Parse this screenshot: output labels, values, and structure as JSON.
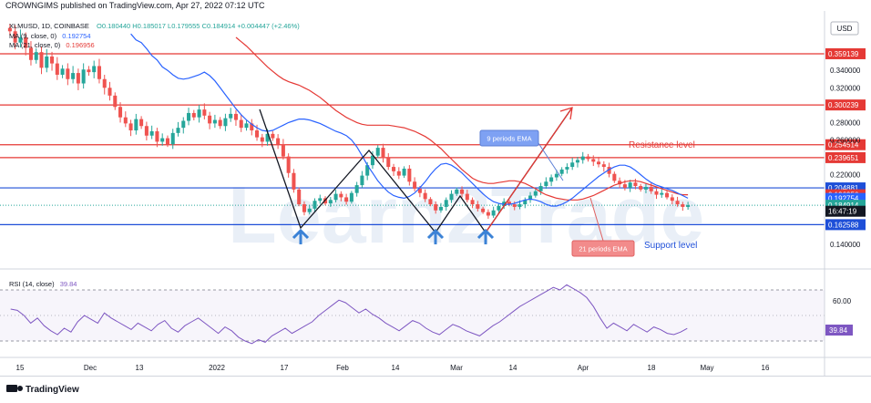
{
  "header": {
    "publisher_line": "CROWNGIMS published on TradingView.com, Apr 27, 2022 07:12 UTC"
  },
  "legend": {
    "symbol_line": "XLMUSD, 1D, COINBASE",
    "ohlc": "O0.180440  H0.185017  L0.179555  C0.184914  +0.004447 (+2.46%)",
    "ma9": "MA (9, close, 0)",
    "ma9_value": "0.192754",
    "ma21": "MA (21, close, 0)",
    "ma21_value": "0.196956"
  },
  "currency": "USD",
  "annotations": {
    "ema9_label": "9 periods EMA",
    "ema21_label": "21 periods EMA",
    "resistance_label": "Resistance level",
    "support_label": "Support level"
  },
  "rsi": {
    "label": "RSI (14, close)",
    "value": "39.84",
    "level_60": "60.00"
  },
  "brand": {
    "name": "TradingView",
    "watermark": "Learn2Trade"
  },
  "colors": {
    "up": "#26a69a",
    "down": "#ef5350",
    "resistance": "#e53935",
    "support": "#1e4fd8",
    "ema9": "#2962ff",
    "ema21": "#e53935",
    "rsi": "#7e57c2",
    "label_blue_bg": "#7ea1f3",
    "label_red_bg": "#f28b8b",
    "countdown_bg": "#131722"
  },
  "chart_data": {
    "type": "candlestick",
    "timeframe": "1D",
    "ylim": [
      0.12,
      0.4
    ],
    "x_ticks": [
      {
        "label": "15",
        "date": "2021-11-15"
      },
      {
        "label": "Dec",
        "date": "2021-12-01"
      },
      {
        "label": "13",
        "date": "2021-12-13"
      },
      {
        "label": "2022",
        "date": "2022-01-01"
      },
      {
        "label": "17",
        "date": "2022-01-17"
      },
      {
        "label": "Feb",
        "date": "2022-02-01"
      },
      {
        "label": "14",
        "date": "2022-02-14"
      },
      {
        "label": "Mar",
        "date": "2022-03-01"
      },
      {
        "label": "14",
        "date": "2022-03-14"
      },
      {
        "label": "Apr",
        "date": "2022-04-01"
      },
      {
        "label": "18",
        "date": "2022-04-18"
      },
      {
        "label": "May",
        "date": "2022-05-01"
      },
      {
        "label": "16",
        "date": "2022-05-16"
      }
    ],
    "y_ticks": [
      "0.340000",
      "0.320000",
      "0.280000",
      "0.260000",
      "0.220000",
      "0.140000"
    ],
    "horizontal_levels": [
      {
        "value": 0.359139,
        "label": "0.359139",
        "kind": "resistance"
      },
      {
        "value": 0.300239,
        "label": "0.300239",
        "kind": "resistance"
      },
      {
        "value": 0.254514,
        "label": "0.254514",
        "kind": "resistance"
      },
      {
        "value": 0.239651,
        "label": "0.239651",
        "kind": "resistance"
      },
      {
        "value": 0.204881,
        "label": "0.204881",
        "kind": "support"
      },
      {
        "value": 0.162588,
        "label": "0.162588",
        "kind": "support"
      }
    ],
    "price_tags": [
      {
        "value": 0.196956,
        "label": "0.196956",
        "kind": "ema21"
      },
      {
        "value": 0.192754,
        "label": "0.192754",
        "kind": "ema9"
      },
      {
        "value": 0.184914,
        "label": "0.184914",
        "kind": "last"
      },
      {
        "value": 0.178,
        "label": "16:47:19",
        "kind": "countdown"
      }
    ],
    "closes": [
      0.385,
      0.372,
      0.378,
      0.366,
      0.352,
      0.361,
      0.343,
      0.356,
      0.348,
      0.335,
      0.342,
      0.33,
      0.337,
      0.325,
      0.341,
      0.338,
      0.345,
      0.33,
      0.32,
      0.311,
      0.298,
      0.286,
      0.279,
      0.271,
      0.284,
      0.276,
      0.265,
      0.27,
      0.258,
      0.262,
      0.255,
      0.268,
      0.274,
      0.282,
      0.291,
      0.286,
      0.295,
      0.288,
      0.279,
      0.283,
      0.276,
      0.285,
      0.29,
      0.283,
      0.274,
      0.279,
      0.271,
      0.263,
      0.258,
      0.267,
      0.262,
      0.255,
      0.241,
      0.222,
      0.203,
      0.186,
      0.177,
      0.181,
      0.19,
      0.193,
      0.187,
      0.191,
      0.198,
      0.194,
      0.189,
      0.199,
      0.208,
      0.219,
      0.231,
      0.242,
      0.251,
      0.239,
      0.229,
      0.224,
      0.219,
      0.227,
      0.212,
      0.204,
      0.199,
      0.192,
      0.186,
      0.179,
      0.183,
      0.191,
      0.198,
      0.203,
      0.198,
      0.191,
      0.186,
      0.181,
      0.177,
      0.173,
      0.179,
      0.184,
      0.189,
      0.186,
      0.183,
      0.186,
      0.191,
      0.196,
      0.201,
      0.207,
      0.212,
      0.217,
      0.221,
      0.226,
      0.229,
      0.234,
      0.237,
      0.241,
      0.238,
      0.235,
      0.232,
      0.229,
      0.221,
      0.213,
      0.209,
      0.205,
      0.211,
      0.207,
      0.203,
      0.206,
      0.201,
      0.197,
      0.199,
      0.194,
      0.19,
      0.186,
      0.183,
      0.185
    ],
    "ema9": [
      0.382,
      0.375,
      0.372,
      0.365,
      0.357,
      0.352,
      0.344,
      0.34,
      0.335,
      0.331,
      0.33,
      0.331,
      0.333,
      0.335,
      0.338,
      0.334,
      0.328,
      0.32,
      0.312,
      0.304,
      0.296,
      0.289,
      0.283,
      0.278,
      0.274,
      0.271,
      0.27,
      0.271,
      0.274,
      0.277,
      0.28,
      0.282,
      0.284,
      0.284,
      0.283,
      0.281,
      0.279,
      0.276,
      0.273,
      0.27,
      0.268,
      0.265,
      0.26,
      0.252,
      0.242,
      0.231,
      0.222,
      0.213,
      0.206,
      0.2,
      0.196,
      0.194,
      0.193,
      0.195,
      0.199,
      0.205,
      0.212,
      0.22,
      0.227,
      0.232,
      0.233,
      0.231,
      0.227,
      0.222,
      0.216,
      0.21,
      0.204,
      0.198,
      0.193,
      0.189,
      0.187,
      0.186,
      0.186,
      0.187,
      0.189,
      0.191,
      0.192,
      0.191,
      0.189,
      0.186,
      0.184,
      0.184,
      0.186,
      0.189,
      0.193,
      0.198,
      0.203,
      0.208,
      0.213,
      0.218,
      0.222,
      0.226,
      0.229,
      0.231,
      0.231,
      0.229,
      0.225,
      0.22,
      0.215,
      0.211,
      0.208,
      0.206,
      0.204,
      0.202,
      0.199,
      0.196,
      0.193
    ],
    "ema21": [
      0.378,
      0.373,
      0.368,
      0.362,
      0.356,
      0.35,
      0.344,
      0.339,
      0.334,
      0.33,
      0.327,
      0.325,
      0.323,
      0.32,
      0.317,
      0.313,
      0.309,
      0.304,
      0.299,
      0.294,
      0.29,
      0.286,
      0.283,
      0.28,
      0.278,
      0.277,
      0.277,
      0.277,
      0.277,
      0.277,
      0.276,
      0.275,
      0.274,
      0.272,
      0.27,
      0.267,
      0.264,
      0.26,
      0.255,
      0.25,
      0.244,
      0.238,
      0.232,
      0.226,
      0.221,
      0.216,
      0.213,
      0.211,
      0.21,
      0.21,
      0.211,
      0.212,
      0.213,
      0.213,
      0.212,
      0.21,
      0.207,
      0.204,
      0.2,
      0.197,
      0.195,
      0.193,
      0.192,
      0.191,
      0.191,
      0.191,
      0.192,
      0.194,
      0.196,
      0.199,
      0.202,
      0.205,
      0.208,
      0.21,
      0.212,
      0.213,
      0.213,
      0.212,
      0.21,
      0.208,
      0.206,
      0.204,
      0.202,
      0.2,
      0.198,
      0.197,
      0.197
    ],
    "rsi": [
      55,
      54,
      50,
      44,
      48,
      42,
      38,
      35,
      40,
      37,
      45,
      50,
      47,
      44,
      52,
      48,
      45,
      42,
      39,
      44,
      41,
      38,
      43,
      46,
      40,
      37,
      42,
      45,
      48,
      44,
      40,
      36,
      41,
      38,
      33,
      30,
      28,
      31,
      29,
      34,
      37,
      40,
      36,
      39,
      42,
      45,
      50,
      54,
      58,
      62,
      60,
      56,
      52,
      55,
      51,
      48,
      44,
      41,
      38,
      42,
      46,
      44,
      40,
      37,
      35,
      39,
      43,
      41,
      38,
      36,
      34,
      38,
      42,
      45,
      49,
      53,
      57,
      60,
      63,
      66,
      69,
      72,
      70,
      74,
      71,
      68,
      64,
      57,
      48,
      40,
      44,
      41,
      38,
      43,
      40,
      37,
      41,
      39,
      36,
      35,
      37,
      39.84
    ],
    "rsi_ylim": [
      20,
      80
    ],
    "rsi_bands": [
      70,
      30
    ]
  }
}
